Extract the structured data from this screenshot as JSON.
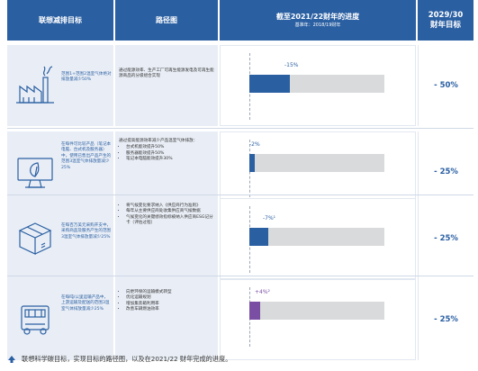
{
  "header": {
    "goal_col": "联想减排目标",
    "path_col": "路径图",
    "progress_col": "截至2021/22财年的进度",
    "baseline": "基准年：2018/19财年",
    "target_col_year": "2029/30",
    "target_col_label": "财年目标"
  },
  "rows": [
    {
      "icon": "factory-icon",
      "goal": "范围1+范围2温室气体绝对排放量减少50%",
      "path_intro": "通过能源效率、生产工厂可再生能源发电及可再生能源商品的分级组合实现",
      "path_items": [],
      "progress_label": "-15%",
      "progress": 0.15,
      "target": "- 50%"
    },
    {
      "icon": "monitor-icon",
      "goal": "在每件可比较产品（笔记本电脑、台式机及服务器）中，使用已售出产品产生的范围3温室气体排放量减少25%",
      "path_intro": "通过提高能源效率减少产品温室气体排放：",
      "path_items": [
        "台式机能效提升50%",
        "服务器能效提升50%",
        "笔记本电脑能效提升30%"
      ],
      "progress_label": "-2%",
      "progress": 0.02,
      "target": "- 25%"
    },
    {
      "icon": "box-icon",
      "goal": "在每百万美元采购开支中，采购商品及服务产生的范围3温室气体排放量减少25%",
      "path_intro": "",
      "path_items": [
        "将气候变化要求纳入《供应商行为准则》",
        "每年从主要供应商处收集供应商气候数据",
        "气候变化的关键绩效指标被纳入供应商ESG记分卡（评估过程）"
      ],
      "progress_label": "-7%¹",
      "progress": 0.07,
      "target": "- 25%"
    },
    {
      "icon": "truck-icon",
      "goal": "在每吨/公里运输产品中，上游运输及配送的范围3温室气体排放量减少25%",
      "path_intro": "",
      "path_items": [
        "向更环保的运输模式转型",
        "优化运输规划",
        "增加集装箱利用率",
        "改善车辆燃油效率"
      ],
      "progress_label": "+4%²",
      "progress": 0.04,
      "target": "- 25%"
    }
  ],
  "caption": "联想科学碳目标，实现目标的路径图，以及在2021/22 财年完成的进度。",
  "colors": {
    "blue": "#2a5fa2",
    "purple": "#7a4fa3",
    "track": "#d9dadb"
  }
}
